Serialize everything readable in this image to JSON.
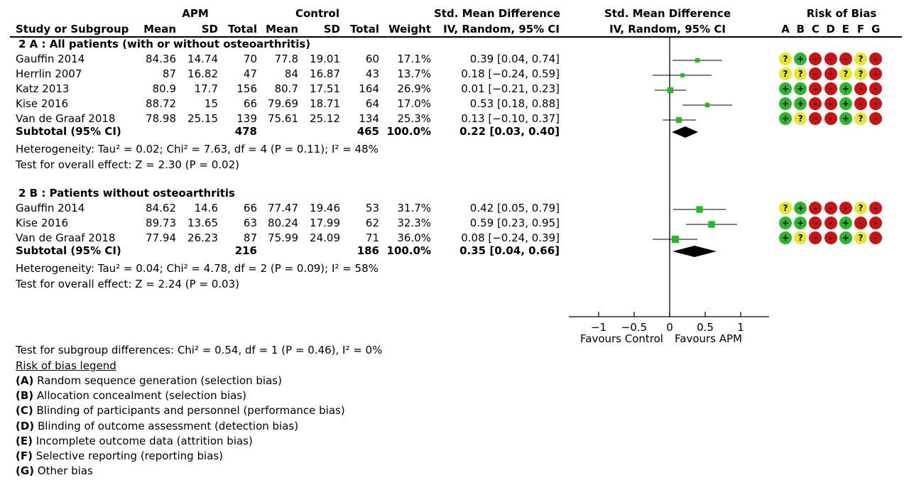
{
  "header": {
    "apm": "APM",
    "control": "Control",
    "smd_top": "Std. Mean Difference",
    "smd_plot_top": "Std. Mean Difference",
    "rob_title": "Risk of Bias",
    "study_col": "Study or Subgroup",
    "mean": "Mean",
    "sd": "SD",
    "total": "Total",
    "weight": "Weight",
    "method": "IV, Random, 95% CI",
    "method_plot": "IV, Random, 95% CI",
    "rob_letters": [
      "A",
      "B",
      "C",
      "D",
      "E",
      "F",
      "G"
    ]
  },
  "subgroups": [
    {
      "label": "2 A :  All patients (with or without osteoarthritis)",
      "studies": [
        {
          "name": "Gauffin 2014",
          "apm_mean": "84.36",
          "apm_sd": "14.74",
          "apm_total": "70",
          "ctl_mean": "77.8",
          "ctl_sd": "19.01",
          "ctl_total": "60",
          "weight": "17.1%",
          "ci": "0.39 [0.04, 0.74]",
          "rob": [
            "?",
            "+",
            "-",
            "-",
            "-",
            "?",
            "-"
          ]
        },
        {
          "name": "Herrlin 2007",
          "apm_mean": "87",
          "apm_sd": "16.82",
          "apm_total": "47",
          "ctl_mean": "84",
          "ctl_sd": "16.87",
          "ctl_total": "43",
          "weight": "13.7%",
          "ci": "0.18 [−0.24, 0.59]",
          "rob": [
            "?",
            "?",
            "-",
            "-",
            "?",
            "?",
            "-"
          ]
        },
        {
          "name": "Katz 2013",
          "apm_mean": "80.9",
          "apm_sd": "17.7",
          "apm_total": "156",
          "ctl_mean": "80.7",
          "ctl_sd": "17.51",
          "ctl_total": "164",
          "weight": "26.9%",
          "ci": "0.01 [−0.21, 0.23]",
          "rob": [
            "+",
            "+",
            "-",
            "-",
            "+",
            "-",
            "-"
          ]
        },
        {
          "name": "Kise 2016",
          "apm_mean": "88.72",
          "apm_sd": "15",
          "apm_total": "66",
          "ctl_mean": "79.69",
          "ctl_sd": "18.71",
          "ctl_total": "64",
          "weight": "17.0%",
          "ci": "0.53 [0.18, 0.88]",
          "rob": [
            "+",
            "+",
            "-",
            "-",
            "+",
            "-",
            "-"
          ]
        },
        {
          "name": "Van de Graaf 2018",
          "apm_mean": "78.98",
          "apm_sd": "25.15",
          "apm_total": "139",
          "ctl_mean": "75.61",
          "ctl_sd": "25.12",
          "ctl_total": "134",
          "weight": "25.3%",
          "ci": "0.13 [−0.10, 0.37]",
          "rob": [
            "+",
            "?",
            "-",
            "-",
            "+",
            "?",
            "-"
          ]
        }
      ],
      "subtotal": {
        "label": "Subtotal (95% CI)",
        "apm_total": "478",
        "ctl_total": "465",
        "weight": "100.0%",
        "ci": "0.22 [0.03, 0.40]"
      },
      "heterogeneity": "Heterogeneity: Tau² = 0.02; Chi² = 7.63, df = 4 (P = 0.11); I² = 48%",
      "overall": "Test for overall effect: Z = 2.30 (P = 0.02)"
    },
    {
      "label": "2 B :  Patients without osteoarthritis",
      "studies": [
        {
          "name": "Gauffin 2014",
          "apm_mean": "84.62",
          "apm_sd": "14.6",
          "apm_total": "66",
          "ctl_mean": "77.47",
          "ctl_sd": "19.46",
          "ctl_total": "53",
          "weight": "31.7%",
          "ci": "0.42 [0.05, 0.79]",
          "rob": [
            "?",
            "+",
            "-",
            "-",
            "-",
            "?",
            "-"
          ]
        },
        {
          "name": "Kise 2016",
          "apm_mean": "89.73",
          "apm_sd": "13.65",
          "apm_total": "63",
          "ctl_mean": "80.24",
          "ctl_sd": "17.99",
          "ctl_total": "62",
          "weight": "32.3%",
          "ci": "0.59 [0.23, 0.95]",
          "rob": [
            "+",
            "+",
            "-",
            "-",
            "+",
            "-",
            "-"
          ]
        },
        {
          "name": "Van de Graaf 2018",
          "apm_mean": "77.94",
          "apm_sd": "26.23",
          "apm_total": "87",
          "ctl_mean": "75.99",
          "ctl_sd": "24.09",
          "ctl_total": "71",
          "weight": "36.0%",
          "ci": "0.08 [−0.24, 0.39]",
          "rob": [
            "+",
            "?",
            "-",
            "-",
            "+",
            "?",
            "-"
          ]
        }
      ],
      "subtotal": {
        "label": "Subtotal (95% CI)",
        "apm_total": "216",
        "ctl_total": "186",
        "weight": "100.0%",
        "ci": "0.35 [0.04, 0.66]"
      },
      "heterogeneity": "Heterogeneity: Tau² = 0.04; Chi² = 4.78, df = 2 (P = 0.09); I² = 58%",
      "overall": "Test for overall effect: Z = 2.24 (P = 0.03)"
    }
  ],
  "footer": {
    "subgroup_test": "Test for subgroup differences: Chi² = 0.54, df = 1 (P = 0.46), I² = 0%",
    "legend_title": "Risk of bias legend",
    "legend": [
      {
        "key": "(A)",
        "text": " Random sequence generation (selection bias)"
      },
      {
        "key": "(B)",
        "text": " Allocation concealment (selection bias)"
      },
      {
        "key": "(C)",
        "text": " Blinding of participants and personnel (performance bias)"
      },
      {
        "key": "(D)",
        "text": " Blinding of outcome assessment (detection bias)"
      },
      {
        "key": "(E)",
        "text": " Incomplete outcome data (attrition bias)"
      },
      {
        "key": "(F)",
        "text": " Selective reporting (reporting bias)"
      },
      {
        "key": "(G)",
        "text": " Other bias"
      }
    ]
  },
  "colors": {
    "marker": "#22bb22",
    "low": "#2db52d",
    "unclear": "#e7e72a",
    "high": "#c81414"
  },
  "chart_data": {
    "type": "forest",
    "xlim": [
      -1.5,
      1.4
    ],
    "ticks": [
      "−1",
      "−0.5",
      "0",
      "0.5",
      "1"
    ],
    "tick_values": [
      -1,
      -0.5,
      0,
      0.5,
      1
    ],
    "xlabel_left": "Favours Control",
    "xlabel_right": "Favours APM",
    "points": [
      {
        "study": "Gauffin 2014",
        "group": "2A",
        "est": 0.39,
        "lo": 0.04,
        "hi": 0.74,
        "weight": 17.1
      },
      {
        "study": "Herrlin 2007",
        "group": "2A",
        "est": 0.18,
        "lo": -0.24,
        "hi": 0.59,
        "weight": 13.7
      },
      {
        "study": "Katz 2013",
        "group": "2A",
        "est": 0.01,
        "lo": -0.21,
        "hi": 0.23,
        "weight": 26.9
      },
      {
        "study": "Kise 2016",
        "group": "2A",
        "est": 0.53,
        "lo": 0.18,
        "hi": 0.88,
        "weight": 17.0
      },
      {
        "study": "Van de Graaf 2018",
        "group": "2A",
        "est": 0.13,
        "lo": -0.1,
        "hi": 0.37,
        "weight": 25.3
      },
      {
        "study": "Gauffin 2014",
        "group": "2B",
        "est": 0.42,
        "lo": 0.05,
        "hi": 0.79,
        "weight": 31.7
      },
      {
        "study": "Kise 2016",
        "group": "2B",
        "est": 0.59,
        "lo": 0.23,
        "hi": 0.95,
        "weight": 32.3
      },
      {
        "study": "Van de Graaf 2018",
        "group": "2B",
        "est": 0.08,
        "lo": -0.24,
        "hi": 0.39,
        "weight": 36.0
      }
    ],
    "subtotals": [
      {
        "group": "2A",
        "est": 0.22,
        "lo": 0.03,
        "hi": 0.4
      },
      {
        "group": "2B",
        "est": 0.35,
        "lo": 0.04,
        "hi": 0.66
      }
    ]
  }
}
